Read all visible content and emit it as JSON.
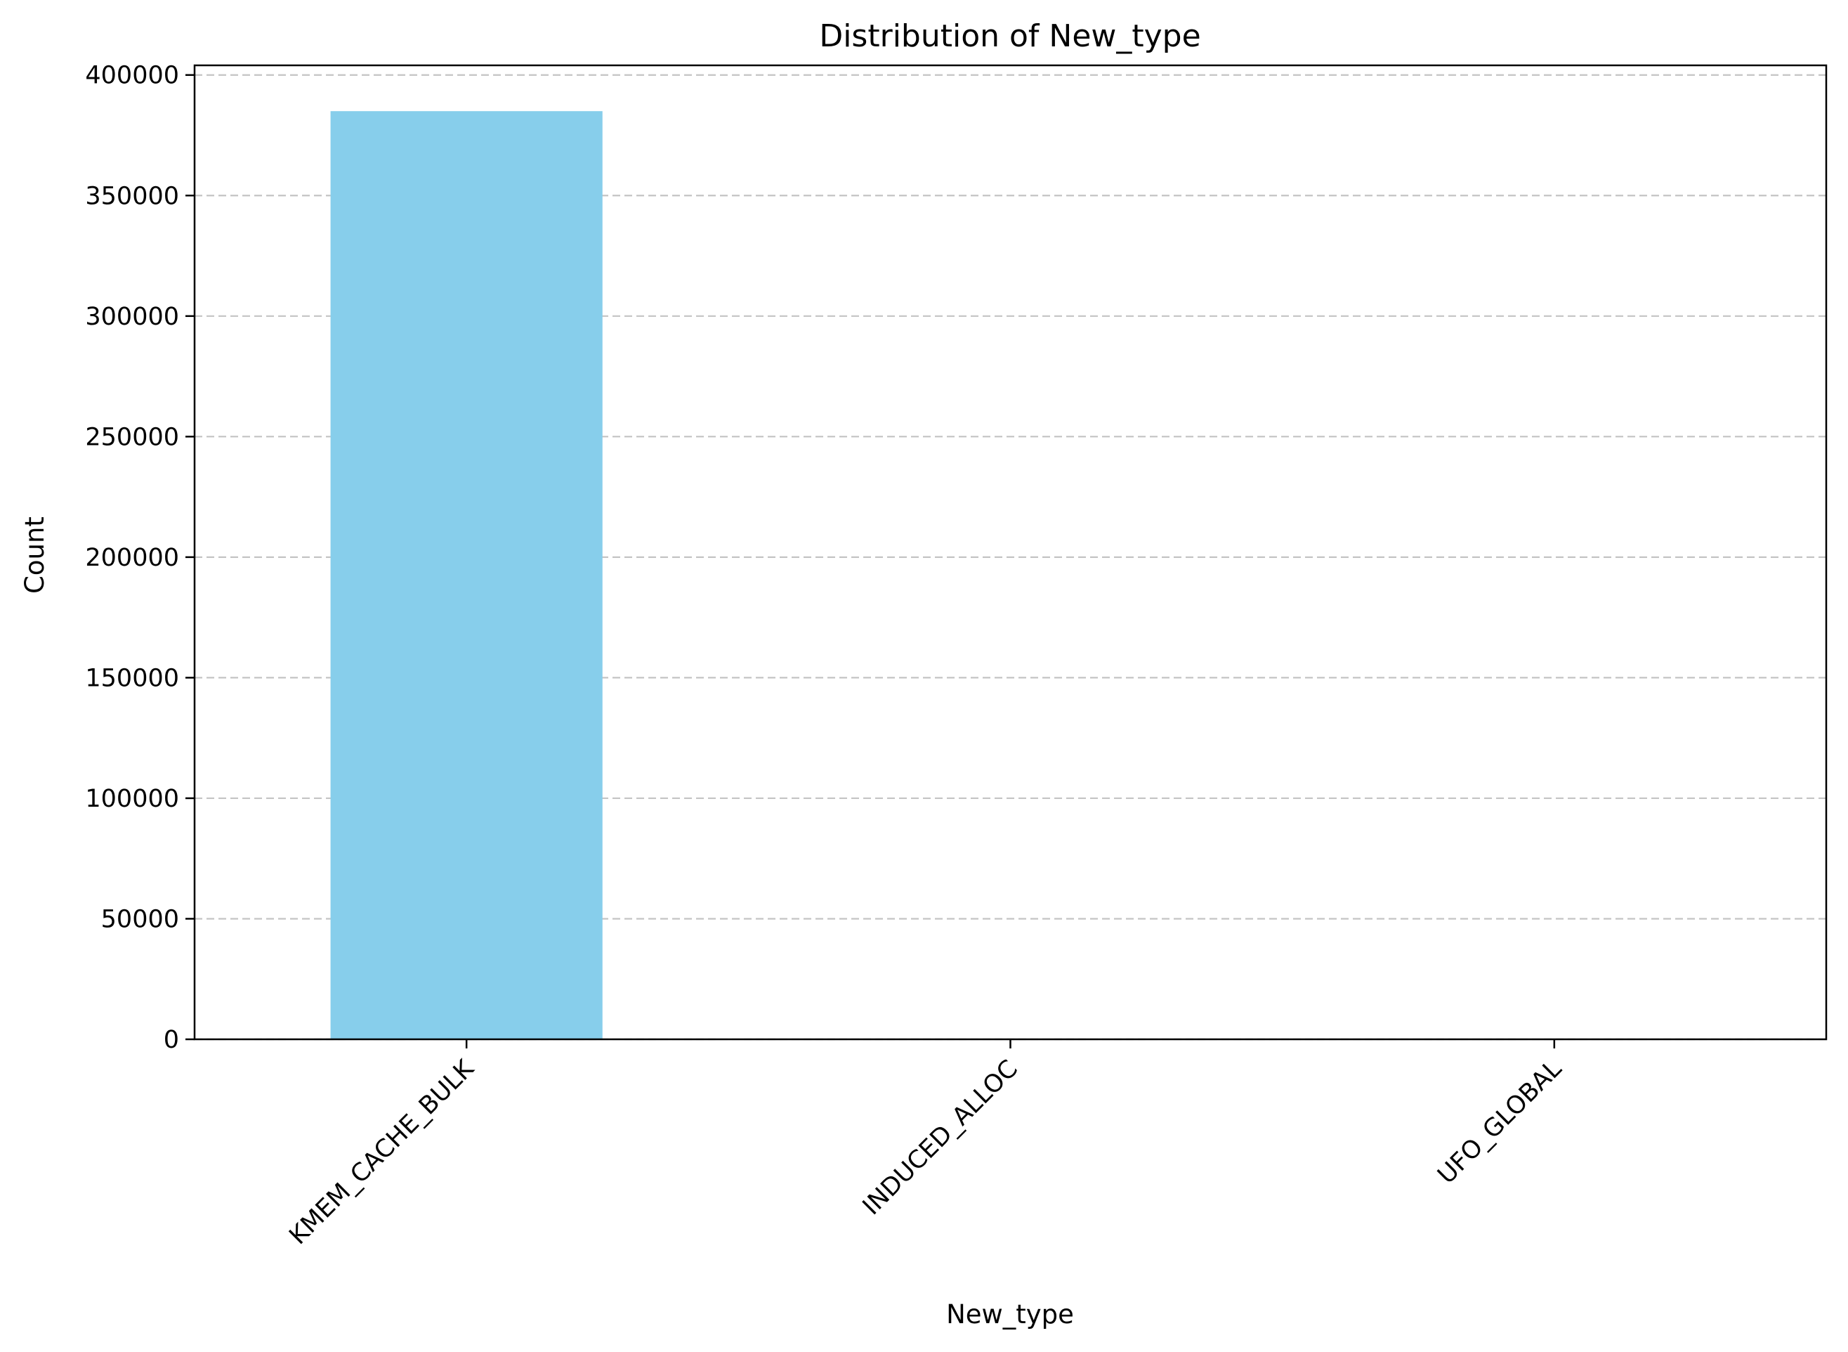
{
  "chart_data": {
    "type": "bar",
    "title": "Distribution of New_type",
    "xlabel": "New_type",
    "ylabel": "Count",
    "categories": [
      "KMEM_CACHE_BULK",
      "INDUCED_ALLOC",
      "UFO_GLOBAL"
    ],
    "values": [
      385000,
      0,
      0
    ],
    "ylim": [
      0,
      404000
    ],
    "yticks": [
      0,
      50000,
      100000,
      150000,
      200000,
      250000,
      300000,
      350000,
      400000
    ],
    "ytick_labels": [
      "0",
      "50000",
      "100000",
      "150000",
      "200000",
      "250000",
      "300000",
      "350000",
      "400000"
    ],
    "grid": "y-dashed",
    "bar_color": "#87CEEB",
    "tick_rotation": 45
  }
}
